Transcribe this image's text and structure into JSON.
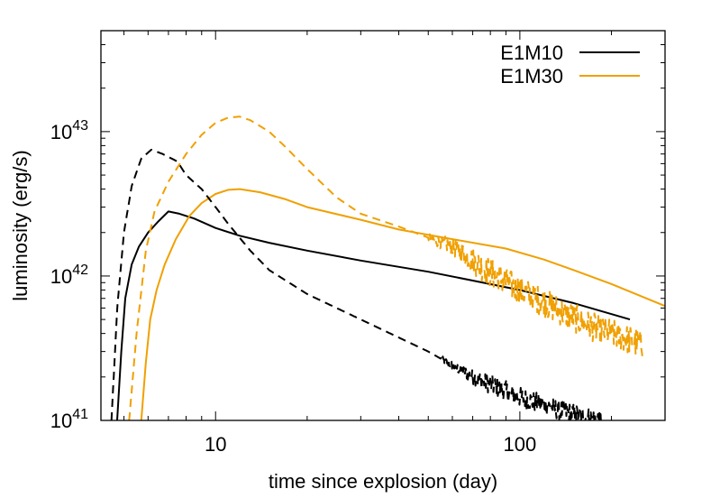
{
  "chart_data": {
    "type": "line",
    "xlabel": "time since explosion (day)",
    "ylabel": "luminosity (erg/s)",
    "x_scale": "log",
    "y_scale": "log",
    "xlim": [
      4.2,
      300
    ],
    "ylim": [
      1e+41,
      5e+43
    ],
    "x_ticks": [
      {
        "value": 10,
        "label": "10"
      },
      {
        "value": 100,
        "label": "100"
      }
    ],
    "y_ticks": [
      {
        "value": 1e+41,
        "base": "10",
        "exp": "41"
      },
      {
        "value": 1e+42,
        "base": "10",
        "exp": "42"
      },
      {
        "value": 1e+43,
        "base": "10",
        "exp": "43"
      }
    ],
    "grid": false,
    "legend": {
      "position": "top-right"
    },
    "series": [
      {
        "name": "E1M10",
        "color": "#000000",
        "style": "solid",
        "in_legend": true,
        "points": [
          [
            4.75,
            1e+41
          ],
          [
            4.9,
            3e+41
          ],
          [
            5.05,
            7e+41
          ],
          [
            5.3,
            1.2e+42
          ],
          [
            5.6,
            1.6e+42
          ],
          [
            6.0,
            2e+42
          ],
          [
            6.5,
            2.4e+42
          ],
          [
            7.0,
            2.8e+42
          ],
          [
            7.6,
            2.7e+42
          ],
          [
            8.5,
            2.5e+42
          ],
          [
            10,
            2.15e+42
          ],
          [
            12,
            1.9e+42
          ],
          [
            15,
            1.7e+42
          ],
          [
            20,
            1.5e+42
          ],
          [
            30,
            1.28e+42
          ],
          [
            50,
            1.07e+42
          ],
          [
            70,
            9.3e+41
          ],
          [
            100,
            8e+41
          ],
          [
            150,
            6.5e+41
          ],
          [
            230,
            5e+41
          ]
        ]
      },
      {
        "name": "E1M30",
        "color": "#f0a000",
        "style": "solid",
        "in_legend": true,
        "points": [
          [
            5.7,
            1e+41
          ],
          [
            5.9,
            2.5e+41
          ],
          [
            6.1,
            5e+41
          ],
          [
            6.4,
            8e+41
          ],
          [
            6.8,
            1.2e+42
          ],
          [
            7.4,
            1.8e+42
          ],
          [
            8.2,
            2.6e+42
          ],
          [
            9,
            3.2e+42
          ],
          [
            10,
            3.7e+42
          ],
          [
            11,
            3.95e+42
          ],
          [
            12,
            4e+42
          ],
          [
            14,
            3.8e+42
          ],
          [
            17,
            3.4e+42
          ],
          [
            20,
            3e+42
          ],
          [
            30,
            2.45e+42
          ],
          [
            40,
            2.1e+42
          ],
          [
            60,
            1.8e+42
          ],
          [
            90,
            1.55e+42
          ],
          [
            120,
            1.3e+42
          ],
          [
            150,
            1.1e+42
          ],
          [
            200,
            8.8e+41
          ],
          [
            300,
            6.2e+41
          ]
        ]
      },
      {
        "name": "",
        "color": "#000000",
        "style": "dashed",
        "in_legend": false,
        "noise": 0.07,
        "noise_from": 55,
        "points": [
          [
            4.55,
            1e+41
          ],
          [
            4.75,
            6e+41
          ],
          [
            5.0,
            2e+42
          ],
          [
            5.3,
            4.2e+42
          ],
          [
            5.7,
            6.5e+42
          ],
          [
            6.15,
            7.5e+42
          ],
          [
            6.7,
            7e+42
          ],
          [
            7.5,
            6.2e+42
          ],
          [
            8,
            5e+42
          ],
          [
            9,
            4e+42
          ],
          [
            10,
            3e+42
          ],
          [
            11,
            2.3e+42
          ],
          [
            13,
            1.5e+42
          ],
          [
            15,
            1.1e+42
          ],
          [
            20,
            7.5e+41
          ],
          [
            30,
            5e+41
          ],
          [
            50,
            3e+41
          ],
          [
            70,
            2e+41
          ],
          [
            100,
            1.45e+41
          ],
          [
            140,
            1.15e+41
          ],
          [
            185,
            1e+41
          ]
        ]
      },
      {
        "name": "",
        "color": "#f0a000",
        "style": "dashed",
        "in_legend": false,
        "noise": 0.1,
        "noise_from": 50,
        "points": [
          [
            5.2,
            1e+41
          ],
          [
            5.5,
            4e+41
          ],
          [
            5.9,
            1.5e+42
          ],
          [
            6.3,
            2.8e+42
          ],
          [
            7,
            4.5e+42
          ],
          [
            8,
            7e+42
          ],
          [
            9,
            9.5e+42
          ],
          [
            10,
            1.15e+43
          ],
          [
            11,
            1.25e+43
          ],
          [
            12,
            1.27e+43
          ],
          [
            13,
            1.2e+43
          ],
          [
            15,
            1e+43
          ],
          [
            17,
            7.8e+42
          ],
          [
            20,
            5.5e+42
          ],
          [
            25,
            3.5e+42
          ],
          [
            30,
            2.7e+42
          ],
          [
            40,
            2.2e+42
          ],
          [
            60,
            1.6e+42
          ],
          [
            80,
            1.05e+42
          ],
          [
            100,
            8e+41
          ],
          [
            130,
            6e+41
          ],
          [
            170,
            4.5e+41
          ],
          [
            200,
            4e+41
          ],
          [
            255,
            3.3e+41
          ]
        ]
      }
    ]
  }
}
